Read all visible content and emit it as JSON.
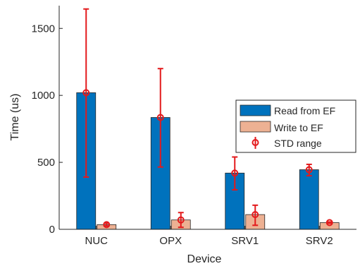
{
  "chart_data": {
    "type": "bar",
    "title": "",
    "xlabel": "Device",
    "ylabel": "Time (us)",
    "ylim": [
      0,
      1670
    ],
    "yticks": [
      0,
      500,
      1000,
      1500
    ],
    "categories": [
      "NUC",
      "OPX",
      "SRV1",
      "SRV2"
    ],
    "grid": false,
    "legend_position": "right",
    "series": [
      {
        "name": "Read from EF",
        "color": "#0072BD",
        "values": [
          1020,
          835,
          420,
          445
        ],
        "std_low": [
          390,
          465,
          295,
          400
        ],
        "std_high": [
          1645,
          1200,
          540,
          485
        ]
      },
      {
        "name": "Write to EF",
        "color": "#EDB193",
        "values": [
          35,
          70,
          110,
          50
        ],
        "std_low": [
          25,
          15,
          30,
          45
        ],
        "std_high": [
          45,
          125,
          180,
          55
        ]
      }
    ],
    "error_legend": {
      "name": "STD range",
      "color": "#E31A1C",
      "marker": "circle"
    }
  }
}
